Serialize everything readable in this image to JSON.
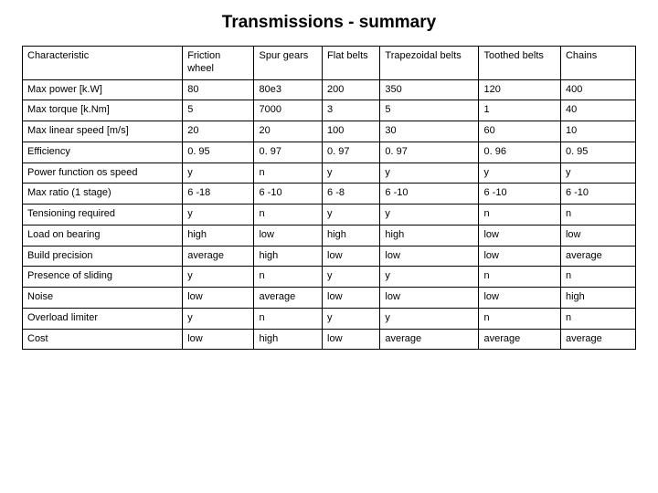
{
  "title": "Transmissions - summary",
  "table": {
    "columns": [
      "Characteristic",
      "Friction wheel",
      "Spur gears",
      "Flat belts",
      "Trapezoidal belts",
      "Toothed belts",
      "Chains"
    ],
    "rows": [
      [
        "Max power [k.W]",
        "80",
        "80e3",
        "200",
        "350",
        "120",
        "400"
      ],
      [
        "Max torque [k.Nm]",
        "5",
        "7000",
        "3",
        "5",
        "1",
        "40"
      ],
      [
        "Max linear speed [m/s]",
        "20",
        "20",
        "100",
        "30",
        "60",
        "10"
      ],
      [
        "Efficiency",
        "0. 95",
        "0. 97",
        "0. 97",
        "0. 97",
        "0. 96",
        "0. 95"
      ],
      [
        "Power function os speed",
        "y",
        "n",
        "y",
        "y",
        "y",
        "y"
      ],
      [
        "Max ratio (1 stage)",
        "6 -18",
        "6 -10",
        "6 -8",
        "6 -10",
        "6 -10",
        "6 -10"
      ],
      [
        "Tensioning required",
        "y",
        "n",
        "y",
        "y",
        "n",
        "n"
      ],
      [
        "Load on bearing",
        "high",
        "low",
        "high",
        "high",
        "low",
        "low"
      ],
      [
        "Build precision",
        "average",
        "high",
        "low",
        "low",
        "low",
        "average"
      ],
      [
        "Presence of sliding",
        "y",
        "n",
        "y",
        "y",
        "n",
        "n"
      ],
      [
        "Noise",
        "low",
        "average",
        "low",
        "low",
        "low",
        "high"
      ],
      [
        "Overload limiter",
        "y",
        "n",
        "y",
        "y",
        "n",
        "n"
      ],
      [
        "Cost",
        "low",
        "high",
        "low",
        "average",
        "average",
        "average"
      ]
    ],
    "border_color": "#000000",
    "background_color": "#ffffff",
    "header_fontsize": 11,
    "cell_fontsize": 11
  }
}
